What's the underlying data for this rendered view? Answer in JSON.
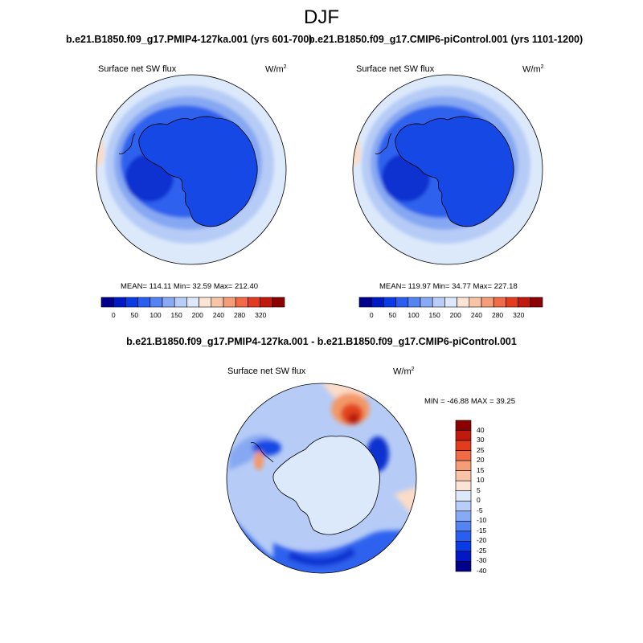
{
  "figure": {
    "title": "DJF"
  },
  "panels": [
    {
      "id": "left",
      "title": "b.e21.B1850.f09_g17.PMIP4-127ka.001 (yrs 601-700)",
      "left_label": "Surface net SW flux",
      "units": "W/m",
      "units_sup": "2",
      "stats": "MEAN= 114.11  Min=  32.59  Max= 212.40"
    },
    {
      "id": "right",
      "title": "b.e21.B1850.f09_g17.CMIP6-piControl.001 (yrs 1101-1200)",
      "left_label": "Surface net SW flux",
      "units": "W/m",
      "units_sup": "2",
      "stats": "MEAN= 119.97  Min=  34.77  Max= 227.18"
    },
    {
      "id": "diff",
      "title": "b.e21.B1850.f09_g17.PMIP4-127ka.001 - b.e21.B1850.f09_g17.CMIP6-piControl.001",
      "left_label": "Surface net SW flux",
      "units": "W/m",
      "units_sup": "2",
      "stats": "MIN = -46.88 MAX =  39.25"
    }
  ],
  "colorbars": {
    "abs": {
      "colors": [
        "#00008b",
        "#0019c4",
        "#0a3ce6",
        "#2a5ef0",
        "#5584f2",
        "#88aaf5",
        "#b8cdf8",
        "#dde9fb",
        "#fbe4d6",
        "#f9c3a8",
        "#f59c78",
        "#ef6a45",
        "#e23b1d",
        "#c01a0d",
        "#8b0000"
      ],
      "tick_labels": [
        "0",
        "50",
        "100",
        "150",
        "200",
        "240",
        "280",
        "320"
      ]
    },
    "diff": {
      "colors": [
        "#8b0000",
        "#c01a0d",
        "#e23b1d",
        "#ef6a45",
        "#f59c78",
        "#f9c3a8",
        "#fbe4d6",
        "#dde9fb",
        "#b8cdf8",
        "#88aaf5",
        "#5584f2",
        "#2a5ef0",
        "#0a3ce6",
        "#0019c4",
        "#00008b"
      ],
      "tick_labels": [
        "40",
        "30",
        "25",
        "20",
        "15",
        "10",
        "5",
        "0",
        "-5",
        "-10",
        "-15",
        "-20",
        "-25",
        "-30",
        "-40"
      ]
    }
  },
  "map_palette": {
    "ocean_light": "#dce9fb",
    "ocean_mid": "#b6ccf6",
    "ocean_blue": "#86a8f2",
    "deep_blue": "#2f62ee",
    "ice_blue": "#1548e4",
    "dark_blue": "#0a33d0",
    "pale_orange": "#fbdcc8",
    "orange": "#f39868",
    "red": "#e2451f",
    "dark_red": "#b61d0a"
  }
}
